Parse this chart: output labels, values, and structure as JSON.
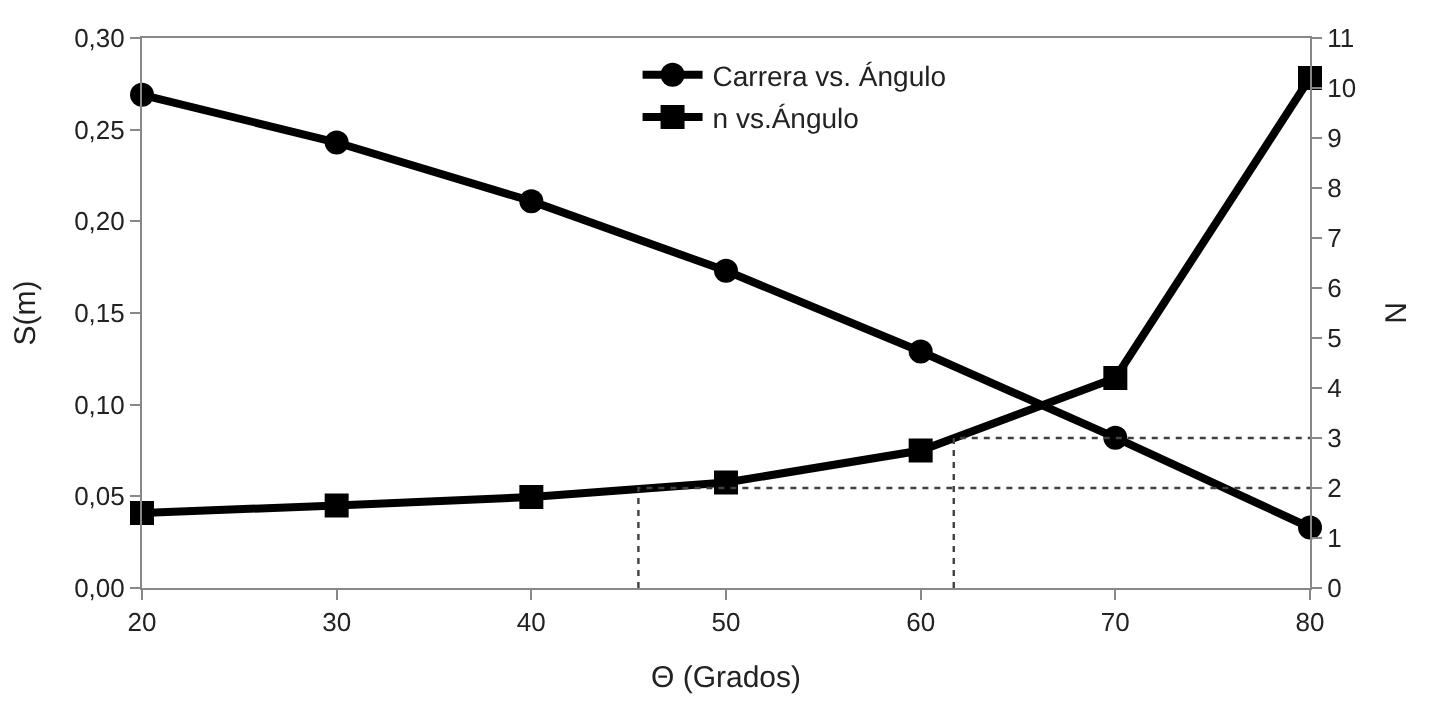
{
  "chart_data": {
    "type": "line",
    "xlabel": "Θ (Grados)",
    "ylabel": "S(m)",
    "y2label": "N",
    "x": [
      20,
      30,
      40,
      50,
      60,
      70,
      80
    ],
    "xlim": [
      20,
      80
    ],
    "xticks": [
      20,
      30,
      40,
      50,
      60,
      70,
      80
    ],
    "ylim": [
      0,
      0.3
    ],
    "yticks": [
      {
        "value": 0,
        "label": "0,00"
      },
      {
        "value": 0.05,
        "label": "0,05"
      },
      {
        "value": 0.1,
        "label": "0,10"
      },
      {
        "value": 0.15,
        "label": "0,15"
      },
      {
        "value": 0.2,
        "label": "0,20"
      },
      {
        "value": 0.25,
        "label": "0,25"
      },
      {
        "value": 0.3,
        "label": "0,30"
      }
    ],
    "y2lim": [
      0,
      11
    ],
    "y2ticks": [
      0,
      1,
      2,
      3,
      4,
      5,
      6,
      7,
      8,
      9,
      10,
      11
    ],
    "legend": "top",
    "series": [
      {
        "name": "Carrera vs. Ángulo",
        "color": "#000000",
        "marker": "circle",
        "values": [
          0.269,
          0.243,
          0.211,
          0.173,
          0.129,
          0.082,
          0.033
        ]
      },
      {
        "name": "n vs.Ángulo",
        "color": "#000000",
        "marker": "square",
        "axis": "y2",
        "values": [
          1.5,
          1.65,
          1.82,
          2.11,
          2.75,
          4.2,
          10.2
        ]
      },
      {
        "color": "#404040",
        "marker": "none",
        "line_style": "dotted",
        "axis": "y2",
        "x": [
          45.5,
          45.5,
          80
        ],
        "values": [
          0,
          2,
          2
        ]
      },
      {
        "color": "#404040",
        "marker": "none",
        "line_style": "dotted",
        "axis": "y2",
        "x": [
          61.7,
          61.7,
          80
        ],
        "values": [
          0,
          3,
          3
        ]
      }
    ]
  }
}
